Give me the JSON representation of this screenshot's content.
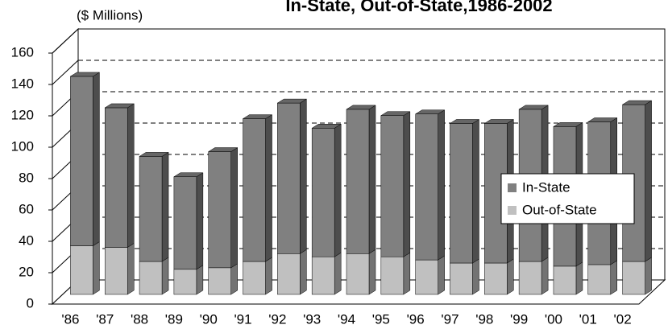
{
  "chart_data": {
    "type": "bar",
    "stacked": true,
    "three_d": true,
    "title": "In-State, Out-of-State,1986-2002",
    "y_label": "($ Millions)",
    "categories": [
      "'86",
      "'87",
      "'88",
      "'89",
      "'90",
      "'91",
      "'92",
      "'93",
      "'94",
      "'95",
      "'96",
      "'97",
      "'98",
      "'99",
      "'00",
      "'01",
      "'02"
    ],
    "series": [
      {
        "name": "Out-of-State",
        "color": "#c0c0c0",
        "values": [
          31,
          30,
          21,
          16,
          17,
          21,
          26,
          24,
          26,
          24,
          22,
          20,
          20,
          21,
          18,
          19,
          21
        ]
      },
      {
        "name": "In-State",
        "color": "#808080",
        "values": [
          108,
          89,
          67,
          59,
          74,
          91,
          96,
          82,
          92,
          90,
          93,
          89,
          89,
          97,
          89,
          91,
          100
        ]
      }
    ],
    "ylim": [
      0,
      160
    ],
    "yticks": [
      0,
      20,
      40,
      60,
      80,
      100,
      120,
      140,
      160
    ],
    "grid": true,
    "legend": "right"
  }
}
